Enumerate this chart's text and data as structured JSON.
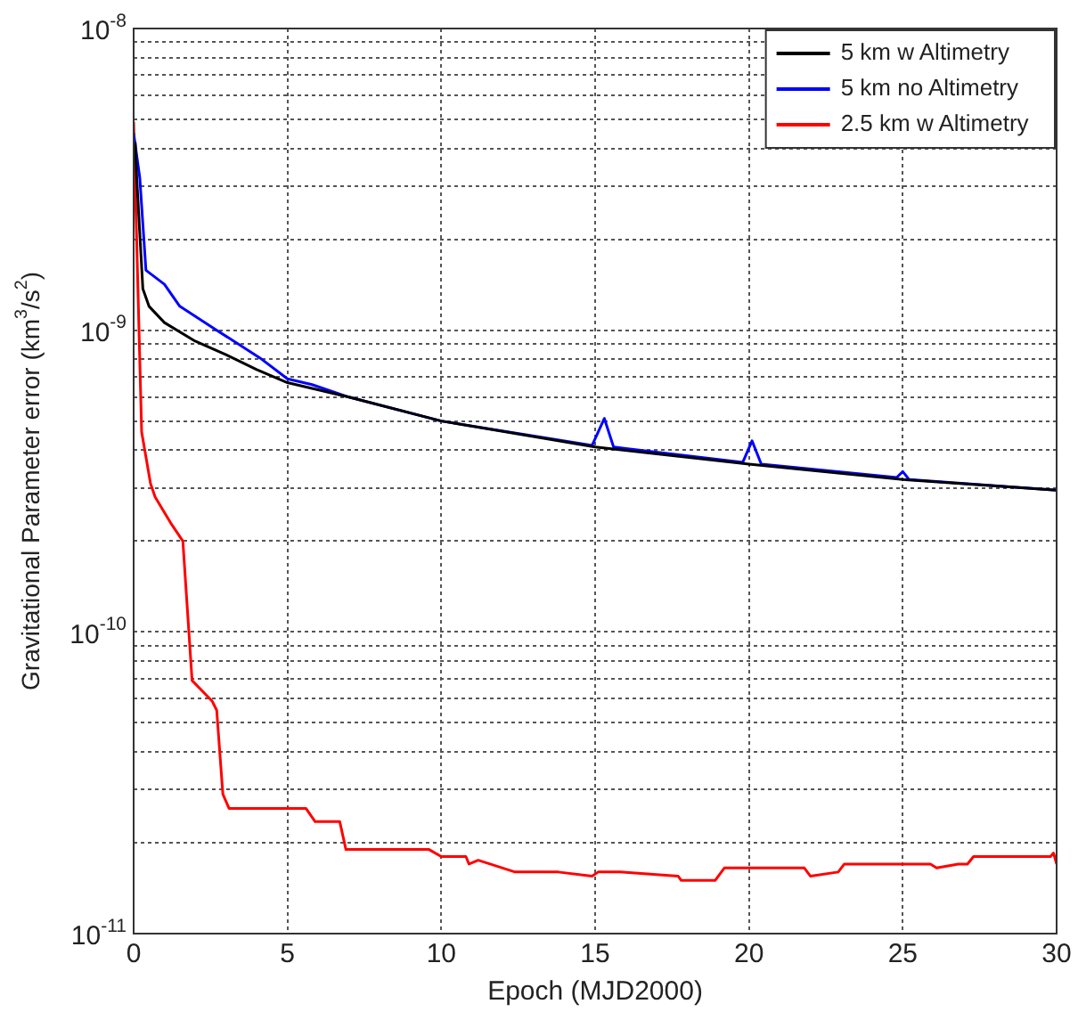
{
  "chart_data": {
    "type": "line",
    "xlabel": "Epoch (MJD2000)",
    "ylabel": "Gravitational Parameter error (km$^{3}$/s$^{2}$)",
    "log": "y",
    "grid": true,
    "legend": "top right",
    "xlim": [
      0,
      30
    ],
    "xticks": [
      0,
      5,
      10,
      15,
      20,
      25,
      30
    ],
    "ylim": [
      1e-11,
      1e-08
    ],
    "yticks": [
      {
        "value": 1e-11,
        "label": "10$^{-11}$"
      },
      {
        "value": 2e-11,
        "label": null
      },
      {
        "value": 3e-11,
        "label": null
      },
      {
        "value": 4e-11,
        "label": null
      },
      {
        "value": 5e-11,
        "label": null
      },
      {
        "value": 6e-11,
        "label": null
      },
      {
        "value": 7e-11,
        "label": null
      },
      {
        "value": 8e-11,
        "label": null
      },
      {
        "value": 9e-11,
        "label": null
      },
      {
        "value": 1e-10,
        "label": "10$^{-10}$"
      },
      {
        "value": 2e-10,
        "label": null
      },
      {
        "value": 3e-10,
        "label": null
      },
      {
        "value": 4e-10,
        "label": null
      },
      {
        "value": 5e-10,
        "label": null
      },
      {
        "value": 6e-10,
        "label": null
      },
      {
        "value": 7e-10,
        "label": null
      },
      {
        "value": 8e-10,
        "label": null
      },
      {
        "value": 9e-10,
        "label": null
      },
      {
        "value": 1e-09,
        "label": "10$^{-9}$"
      },
      {
        "value": 2e-09,
        "label": null
      },
      {
        "value": 3e-09,
        "label": null
      },
      {
        "value": 4e-09,
        "label": null
      },
      {
        "value": 5e-09,
        "label": null
      },
      {
        "value": 6e-09,
        "label": null
      },
      {
        "value": 7e-09,
        "label": null
      },
      {
        "value": 8e-09,
        "label": null
      },
      {
        "value": 9e-09,
        "label": null
      },
      {
        "value": 1e-08,
        "label": "10$^{-8}$"
      }
    ],
    "series": [
      {
        "name": "5 km w Altimetry",
        "color": "#000000",
        "x": [
          0.05,
          0.1,
          0.3,
          0.5,
          1,
          2,
          3,
          4,
          5,
          7,
          10,
          15,
          20,
          25,
          30
        ],
        "values": [
          4.2e-09,
          3.2e-09,
          1.37e-09,
          1.2e-09,
          1.06e-09,
          9.2e-10,
          8.3e-10,
          7.4e-10,
          6.7e-10,
          6e-10,
          5e-10,
          4.1e-10,
          3.6e-10,
          3.2e-10,
          2.95e-10
        ]
      },
      {
        "name": "5 km no Altimetry",
        "color": "#0000ff",
        "x": [
          0,
          0.2,
          0.4,
          1,
          1.5,
          2.7,
          4.1,
          5,
          5.8,
          7,
          10,
          14.9,
          15.3,
          15.6,
          16,
          19.8,
          20.1,
          20.4,
          24.8,
          25,
          25.2,
          30
        ],
        "values": [
          4.5e-09,
          3.2e-09,
          1.58e-09,
          1.42e-09,
          1.2e-09,
          1e-09,
          8.1e-10,
          6.9e-10,
          6.6e-10,
          6e-10,
          5e-10,
          4.15e-10,
          5.1e-10,
          4.1e-10,
          4.05e-10,
          3.65e-10,
          4.3e-10,
          3.6e-10,
          3.25e-10,
          3.4e-10,
          3.2e-10,
          2.95e-10
        ]
      },
      {
        "name": "2.5 km w Altimetry",
        "color": "#ff0000",
        "x": [
          0,
          0.26,
          0.55,
          0.7,
          1.2,
          1.6,
          1.9,
          2.55,
          2.7,
          2.9,
          3.1,
          5.6,
          5.9,
          6.7,
          6.9,
          9.6,
          10,
          10.8,
          10.9,
          11.2,
          12.4,
          13.8,
          14.9,
          15.1,
          15.8,
          17.7,
          17.8,
          18.9,
          19.2,
          21.8,
          22.0,
          22.9,
          23.1,
          25.9,
          26.1,
          26.8,
          27.1,
          27.3,
          29.8,
          29.9,
          30
        ],
        "values": [
          4.9e-09,
          4.6e-10,
          3.1e-10,
          2.8e-10,
          2.3e-10,
          2e-10,
          6.9e-11,
          5.9e-11,
          5.5e-11,
          2.9e-11,
          2.6e-11,
          2.6e-11,
          2.35e-11,
          2.35e-11,
          1.9e-11,
          1.9e-11,
          1.8e-11,
          1.8e-11,
          1.7e-11,
          1.75e-11,
          1.6e-11,
          1.6e-11,
          1.55e-11,
          1.6e-11,
          1.6e-11,
          1.55e-11,
          1.5e-11,
          1.5e-11,
          1.65e-11,
          1.65e-11,
          1.55e-11,
          1.6e-11,
          1.7e-11,
          1.7e-11,
          1.65e-11,
          1.7e-11,
          1.7e-11,
          1.8e-11,
          1.8e-11,
          1.85e-11,
          1.7e-11
        ]
      }
    ]
  }
}
